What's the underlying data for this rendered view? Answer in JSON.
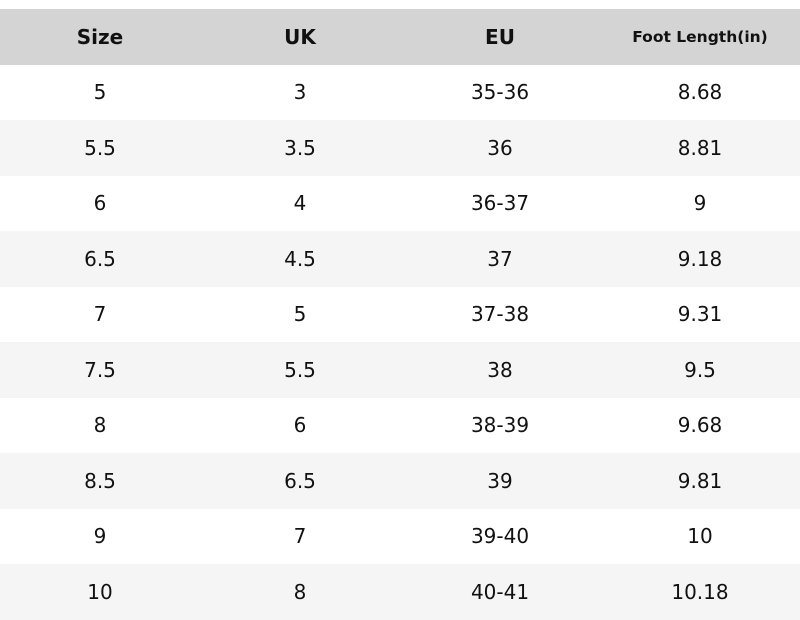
{
  "table": {
    "headers": [
      "Size",
      "UK",
      "EU",
      "Foot Length(in)"
    ],
    "rows": [
      [
        "5",
        "3",
        "35-36",
        "8.68"
      ],
      [
        "5.5",
        "3.5",
        "36",
        "8.81"
      ],
      [
        "6",
        "4",
        "36-37",
        "9"
      ],
      [
        "6.5",
        "4.5",
        "37",
        "9.18"
      ],
      [
        "7",
        "5",
        "37-38",
        "9.31"
      ],
      [
        "7.5",
        "5.5",
        "38",
        "9.5"
      ],
      [
        "8",
        "6",
        "38-39",
        "9.68"
      ],
      [
        "8.5",
        "6.5",
        "39",
        "9.81"
      ],
      [
        "9",
        "7",
        "39-40",
        "10"
      ],
      [
        "10",
        "8",
        "40-41",
        "10.18"
      ]
    ]
  },
  "colors": {
    "header_background": "#d4d4d4",
    "alternate_row_background": "#f5f5f5",
    "row_background": "#ffffff",
    "text": "#111111"
  }
}
